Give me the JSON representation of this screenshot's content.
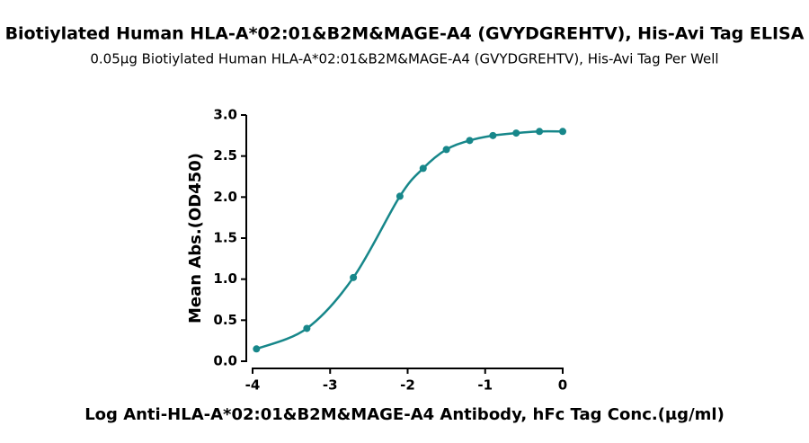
{
  "chart_data": {
    "type": "scatter",
    "title": "Biotiylated Human HLA-A*02:01&B2M&MAGE-A4 (GVYDGREHTV), His-Avi Tag ELISA",
    "subtitle": "0.05μg Biotiylated Human HLA-A*02:01&B2M&MAGE-A4 (GVYDGREHTV), His-Avi Tag Per Well",
    "x_label": "Log Anti-HLA-A*02:01&B2M&MAGE-A4 Antibody, hFc Tag Conc.(μg/ml)",
    "y_label": "Mean Abs.(OD450)",
    "x": [
      -3.95,
      -3.3,
      -2.7,
      -2.1,
      -1.8,
      -1.5,
      -1.2,
      -0.9,
      -0.6,
      -0.3,
      0
    ],
    "series": [
      {
        "color": "#17878a",
        "values": [
          0.15,
          0.4,
          1.02,
          2.01,
          2.35,
          2.58,
          2.69,
          2.75,
          2.78,
          2.8,
          2.8
        ]
      }
    ],
    "xlim": [
      -4,
      0
    ],
    "xticks": [
      -4,
      -3,
      -2,
      -1,
      0
    ],
    "ylim": [
      0,
      3
    ],
    "yticks": [
      {
        "value": 0,
        "label": "0.0"
      },
      {
        "value": 0.5,
        "label": "0.5"
      },
      {
        "value": 1,
        "label": "1.0"
      },
      {
        "value": 1.5,
        "label": "1.5"
      },
      {
        "value": 2,
        "label": "2.0"
      },
      {
        "value": 2.5,
        "label": "2.5"
      },
      {
        "value": 3,
        "label": "3.0"
      }
    ]
  }
}
